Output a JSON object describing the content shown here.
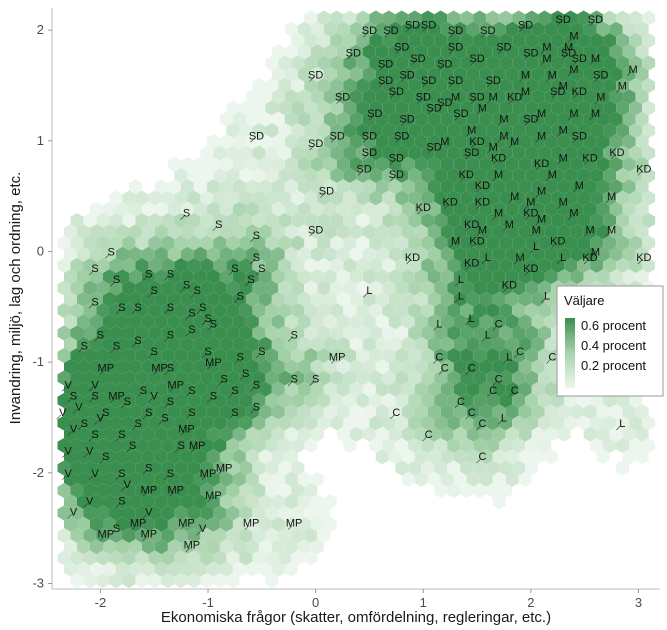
{
  "chart_data": {
    "type": "hexbin",
    "xlabel": "Ekonomiska frågor (skatter, omfördelning, regleringar, etc.)",
    "ylabel": "Invandring, miljö, lag och ordning, etc.",
    "xlim": [
      -2.45,
      3.2
    ],
    "ylim": [
      -3.05,
      2.2
    ],
    "x_ticks": [
      -2,
      -1,
      0,
      1,
      2,
      3
    ],
    "y_ticks": [
      -3,
      -2,
      -1,
      0,
      1,
      2
    ],
    "grid": false,
    "legend": {
      "title": "Väljare",
      "placement": "right",
      "labels": [
        "0.6 procent",
        "0.4 procent",
        "0.2 procent"
      ],
      "colors": {
        "low": "#edf6ee",
        "mid": "#a8d3ac",
        "high": "#3a8f4f"
      }
    },
    "parties": [
      {
        "name": "SD",
        "points": [
          [
            0.5,
            2.0
          ],
          [
            0.7,
            2.0
          ],
          [
            0.9,
            2.05
          ],
          [
            1.05,
            2.05
          ],
          [
            1.3,
            2.0
          ],
          [
            1.6,
            2.0
          ],
          [
            1.95,
            2.05
          ],
          [
            2.3,
            2.1
          ],
          [
            2.6,
            2.1
          ],
          [
            0.35,
            1.8
          ],
          [
            0.8,
            1.85
          ],
          [
            1.3,
            1.85
          ],
          [
            1.75,
            1.85
          ],
          [
            2.0,
            1.8
          ],
          [
            2.35,
            1.8
          ],
          [
            0.65,
            1.7
          ],
          [
            0.95,
            1.75
          ],
          [
            1.2,
            1.7
          ],
          [
            1.5,
            1.75
          ],
          [
            2.45,
            1.75
          ],
          [
            0.0,
            1.6
          ],
          [
            0.65,
            1.55
          ],
          [
            0.85,
            1.6
          ],
          [
            1.05,
            1.55
          ],
          [
            1.3,
            1.55
          ],
          [
            1.65,
            1.55
          ],
          [
            2.65,
            1.6
          ],
          [
            0.25,
            1.4
          ],
          [
            0.75,
            1.45
          ],
          [
            1.0,
            1.4
          ],
          [
            1.2,
            1.35
          ],
          [
            1.5,
            1.4
          ],
          [
            2.25,
            1.45
          ],
          [
            0.55,
            1.25
          ],
          [
            0.85,
            1.2
          ],
          [
            1.1,
            1.3
          ],
          [
            1.35,
            1.25
          ],
          [
            2.0,
            1.2
          ],
          [
            -0.55,
            1.05
          ],
          [
            0.0,
            0.98
          ],
          [
            0.2,
            1.05
          ],
          [
            0.5,
            1.05
          ],
          [
            0.8,
            1.05
          ],
          [
            2.45,
            1.05
          ],
          [
            0.5,
            0.9
          ],
          [
            0.75,
            0.85
          ],
          [
            1.1,
            0.95
          ],
          [
            1.45,
            0.9
          ],
          [
            0.45,
            0.75
          ],
          [
            0.75,
            0.7
          ],
          [
            0.1,
            0.55
          ],
          [
            0.0,
            0.2
          ]
        ]
      },
      {
        "name": "M",
        "points": [
          [
            2.4,
            1.95
          ],
          [
            2.15,
            1.85
          ],
          [
            2.35,
            1.85
          ],
          [
            2.15,
            1.75
          ],
          [
            2.6,
            1.75
          ],
          [
            2.95,
            1.65
          ],
          [
            2.4,
            1.65
          ],
          [
            1.95,
            1.6
          ],
          [
            2.2,
            1.6
          ],
          [
            2.3,
            1.5
          ],
          [
            2.85,
            1.5
          ],
          [
            1.3,
            1.4
          ],
          [
            1.65,
            1.4
          ],
          [
            1.95,
            1.45
          ],
          [
            2.65,
            1.4
          ],
          [
            1.55,
            1.3
          ],
          [
            1.75,
            1.2
          ],
          [
            2.1,
            1.25
          ],
          [
            2.4,
            1.25
          ],
          [
            2.6,
            1.25
          ],
          [
            1.45,
            1.1
          ],
          [
            1.75,
            1.05
          ],
          [
            1.85,
            1.0
          ],
          [
            2.1,
            1.05
          ],
          [
            2.3,
            1.1
          ],
          [
            1.2,
            1.0
          ],
          [
            1.65,
            0.95
          ],
          [
            2.3,
            0.85
          ],
          [
            1.7,
            0.7
          ],
          [
            2.2,
            0.7
          ],
          [
            2.45,
            0.6
          ],
          [
            1.85,
            0.5
          ],
          [
            2.1,
            0.55
          ],
          [
            2.0,
            0.45
          ],
          [
            2.3,
            0.45
          ],
          [
            2.75,
            0.5
          ],
          [
            1.7,
            0.35
          ],
          [
            2.1,
            0.3
          ],
          [
            2.4,
            0.35
          ],
          [
            1.55,
            0.2
          ],
          [
            1.8,
            0.25
          ],
          [
            1.3,
            0.1
          ],
          [
            1.9,
            -0.05
          ],
          [
            2.05,
            0.2
          ],
          [
            2.55,
            0.2
          ],
          [
            2.75,
            0.2
          ],
          [
            2.6,
            0.0
          ]
        ]
      },
      {
        "name": "KD",
        "points": [
          [
            1.85,
            1.4
          ],
          [
            2.45,
            1.45
          ],
          [
            1.5,
            1.0
          ],
          [
            1.7,
            0.85
          ],
          [
            1.4,
            0.7
          ],
          [
            1.55,
            0.6
          ],
          [
            2.1,
            0.8
          ],
          [
            2.55,
            0.85
          ],
          [
            2.8,
            0.9
          ],
          [
            3.05,
            0.75
          ],
          [
            1.0,
            0.4
          ],
          [
            1.25,
            0.45
          ],
          [
            1.55,
            0.45
          ],
          [
            1.45,
            0.25
          ],
          [
            1.5,
            0.1
          ],
          [
            2.0,
            0.35
          ],
          [
            2.25,
            0.1
          ],
          [
            2.55,
            -0.05
          ],
          [
            2.0,
            -0.15
          ],
          [
            3.05,
            -0.05
          ],
          [
            0.9,
            -0.05
          ],
          [
            1.45,
            -0.1
          ],
          [
            1.8,
            -0.3
          ]
        ]
      },
      {
        "name": "L",
        "points": [
          [
            2.3,
            -0.05
          ],
          [
            2.05,
            0.05
          ],
          [
            1.6,
            -0.05
          ],
          [
            1.35,
            -0.25
          ],
          [
            0.5,
            -0.35
          ],
          [
            1.35,
            -0.4
          ],
          [
            1.45,
            -0.6
          ],
          [
            1.15,
            -0.65
          ],
          [
            1.6,
            -0.75
          ],
          [
            1.8,
            -0.95
          ],
          [
            1.75,
            -1.5
          ],
          [
            2.85,
            -1.55
          ],
          [
            2.15,
            -0.4
          ]
        ]
      },
      {
        "name": "C",
        "points": [
          [
            1.7,
            -0.65
          ],
          [
            1.9,
            -0.9
          ],
          [
            2.2,
            -0.95
          ],
          [
            1.15,
            -0.95
          ],
          [
            1.2,
            -1.05
          ],
          [
            1.45,
            -1.05
          ],
          [
            1.7,
            -1.15
          ],
          [
            1.65,
            -1.25
          ],
          [
            1.85,
            -1.25
          ],
          [
            1.35,
            -1.35
          ],
          [
            1.45,
            -1.45
          ],
          [
            1.55,
            -1.55
          ],
          [
            0.75,
            -1.45
          ],
          [
            1.05,
            -1.65
          ],
          [
            1.55,
            -1.85
          ]
        ]
      },
      {
        "name": "MP",
        "points": [
          [
            0.2,
            -0.95
          ],
          [
            -1.95,
            -1.05
          ],
          [
            -1.45,
            -1.05
          ],
          [
            -1.85,
            -1.3
          ],
          [
            -0.95,
            -1.0
          ],
          [
            -1.3,
            -1.2
          ],
          [
            -1.2,
            -1.6
          ],
          [
            -1.1,
            -1.75
          ],
          [
            -1.0,
            -2.0
          ],
          [
            -0.85,
            -1.95
          ],
          [
            -1.3,
            -2.15
          ],
          [
            -1.55,
            -2.15
          ],
          [
            -0.95,
            -2.2
          ],
          [
            -1.65,
            -2.45
          ],
          [
            -1.2,
            -2.45
          ],
          [
            -1.95,
            -2.55
          ],
          [
            -1.55,
            -2.55
          ],
          [
            -0.6,
            -2.45
          ],
          [
            -0.2,
            -2.45
          ],
          [
            -1.15,
            -2.65
          ]
        ]
      },
      {
        "name": "S",
        "points": [
          [
            -1.2,
            0.35
          ],
          [
            -0.9,
            0.25
          ],
          [
            -0.55,
            0.15
          ],
          [
            -0.5,
            -0.15
          ],
          [
            -1.9,
            0.0
          ],
          [
            -2.05,
            -0.15
          ],
          [
            -1.85,
            -0.25
          ],
          [
            -1.55,
            -0.2
          ],
          [
            -1.35,
            -0.2
          ],
          [
            -0.75,
            -0.15
          ],
          [
            -0.6,
            -0.25
          ],
          [
            -0.7,
            -0.4
          ],
          [
            -1.05,
            -0.5
          ],
          [
            -1.15,
            -0.55
          ],
          [
            -1.5,
            -0.35
          ],
          [
            -1.2,
            -0.3
          ],
          [
            -1.1,
            -0.35
          ],
          [
            -2.05,
            -0.45
          ],
          [
            -1.8,
            -0.5
          ],
          [
            -1.65,
            -0.5
          ],
          [
            -1.35,
            -0.5
          ],
          [
            -1.0,
            -0.6
          ],
          [
            -2.0,
            -0.75
          ],
          [
            -1.65,
            -0.8
          ],
          [
            -1.35,
            -0.75
          ],
          [
            -1.15,
            -0.7
          ],
          [
            -0.95,
            -0.65
          ],
          [
            -1.85,
            -0.85
          ],
          [
            -2.15,
            -0.85
          ],
          [
            -1.5,
            -0.9
          ],
          [
            -1.0,
            -0.9
          ],
          [
            -0.7,
            -0.95
          ],
          [
            -0.5,
            -0.9
          ],
          [
            -1.35,
            -1.05
          ],
          [
            -1.15,
            -1.25
          ],
          [
            -1.6,
            -1.25
          ],
          [
            -1.75,
            -1.35
          ],
          [
            -2.05,
            -1.3
          ],
          [
            -2.25,
            -1.3
          ],
          [
            -0.85,
            -1.15
          ],
          [
            -0.65,
            -1.1
          ],
          [
            -0.55,
            -1.2
          ],
          [
            -0.75,
            -1.25
          ],
          [
            -0.95,
            -1.3
          ],
          [
            -0.55,
            -1.4
          ],
          [
            -1.55,
            -1.45
          ],
          [
            -1.65,
            -1.55
          ],
          [
            -1.95,
            -1.45
          ],
          [
            -2.15,
            -1.55
          ],
          [
            -2.05,
            -1.65
          ],
          [
            -1.8,
            -1.65
          ],
          [
            -1.4,
            -1.5
          ],
          [
            -1.35,
            -1.35
          ],
          [
            -1.15,
            -1.45
          ],
          [
            -0.75,
            -1.45
          ],
          [
            -1.7,
            -1.75
          ],
          [
            -1.95,
            -1.85
          ],
          [
            -1.25,
            -1.75
          ],
          [
            -1.8,
            -2.0
          ],
          [
            -1.55,
            -1.95
          ],
          [
            -1.35,
            -2.0
          ],
          [
            -0.2,
            -1.15
          ],
          [
            0.0,
            -1.15
          ],
          [
            -1.8,
            -2.25
          ],
          [
            -1.85,
            -2.5
          ],
          [
            -0.2,
            -0.75
          ],
          [
            -0.55,
            -0.05
          ]
        ]
      },
      {
        "name": "V",
        "points": [
          [
            -2.3,
            -1.2
          ],
          [
            -2.05,
            -1.2
          ],
          [
            -2.35,
            -1.45
          ],
          [
            -2.2,
            -1.4
          ],
          [
            -1.5,
            -1.3
          ],
          [
            -2.25,
            -1.6
          ],
          [
            -2.0,
            -1.5
          ],
          [
            -2.3,
            -1.8
          ],
          [
            -2.1,
            -1.8
          ],
          [
            -2.3,
            -2.0
          ],
          [
            -2.05,
            -2.0
          ],
          [
            -1.75,
            -2.1
          ],
          [
            -2.1,
            -2.25
          ],
          [
            -1.55,
            -2.35
          ],
          [
            -2.25,
            -2.35
          ],
          [
            -1.05,
            -2.5
          ]
        ]
      }
    ]
  }
}
